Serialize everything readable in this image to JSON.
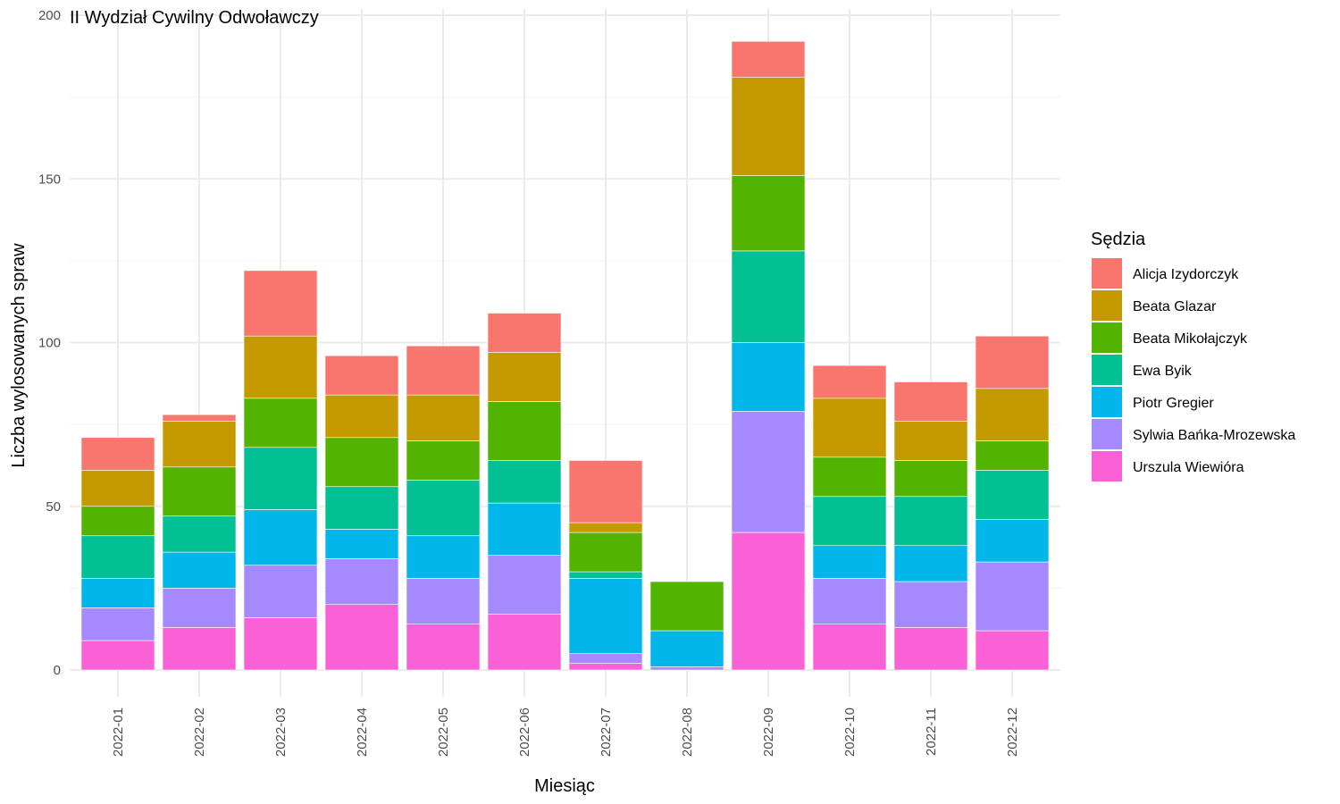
{
  "chart_data": {
    "type": "bar",
    "stacked": true,
    "title": "II Wydział Cywilny Odwoławczy",
    "xlabel": "Miesiąc",
    "ylabel": "Liczba wylosowanych spraw",
    "ylim": [
      0,
      200
    ],
    "yticks": [
      0,
      50,
      100,
      150,
      200
    ],
    "grid": true,
    "legend_position": "right",
    "legend_title": "Sędzia",
    "categories": [
      "2022-01",
      "2022-02",
      "2022-03",
      "2022-04",
      "2022-05",
      "2022-06",
      "2022-07",
      "2022-08",
      "2022-09",
      "2022-10",
      "2022-11",
      "2022-12"
    ],
    "series": [
      {
        "name": "Urszula Wiewióra",
        "color": "#FB61D7",
        "values": [
          9,
          13,
          16,
          20,
          14,
          17,
          2,
          0,
          42,
          14,
          13,
          12
        ]
      },
      {
        "name": "Sylwia Bańka-Mrozewska",
        "color": "#A58AFF",
        "values": [
          10,
          12,
          16,
          14,
          14,
          18,
          3,
          1,
          37,
          14,
          14,
          21
        ]
      },
      {
        "name": "Piotr Gregier",
        "color": "#00B6EB",
        "values": [
          9,
          11,
          17,
          9,
          13,
          16,
          23,
          11,
          21,
          10,
          11,
          13
        ]
      },
      {
        "name": "Ewa Byik",
        "color": "#00C094",
        "values": [
          13,
          11,
          19,
          13,
          17,
          13,
          2,
          0,
          28,
          15,
          15,
          15
        ]
      },
      {
        "name": "Beata Mikołajczyk",
        "color": "#53B400",
        "values": [
          9,
          15,
          15,
          15,
          12,
          18,
          12,
          15,
          23,
          12,
          11,
          9
        ]
      },
      {
        "name": "Beata Glazar",
        "color": "#C49A00",
        "values": [
          11,
          14,
          19,
          13,
          14,
          15,
          3,
          0,
          30,
          18,
          12,
          16
        ]
      },
      {
        "name": "Alicja Izydorczyk",
        "color": "#F8766D",
        "values": [
          10,
          2,
          20,
          12,
          15,
          12,
          19,
          0,
          11,
          10,
          12,
          16
        ]
      }
    ],
    "legend_order": [
      "Alicja Izydorczyk",
      "Beata Glazar",
      "Beata Mikołajczyk",
      "Ewa Byik",
      "Piotr Gregier",
      "Sylwia Bańka-Mrozewska",
      "Urszula Wiewióra"
    ]
  }
}
